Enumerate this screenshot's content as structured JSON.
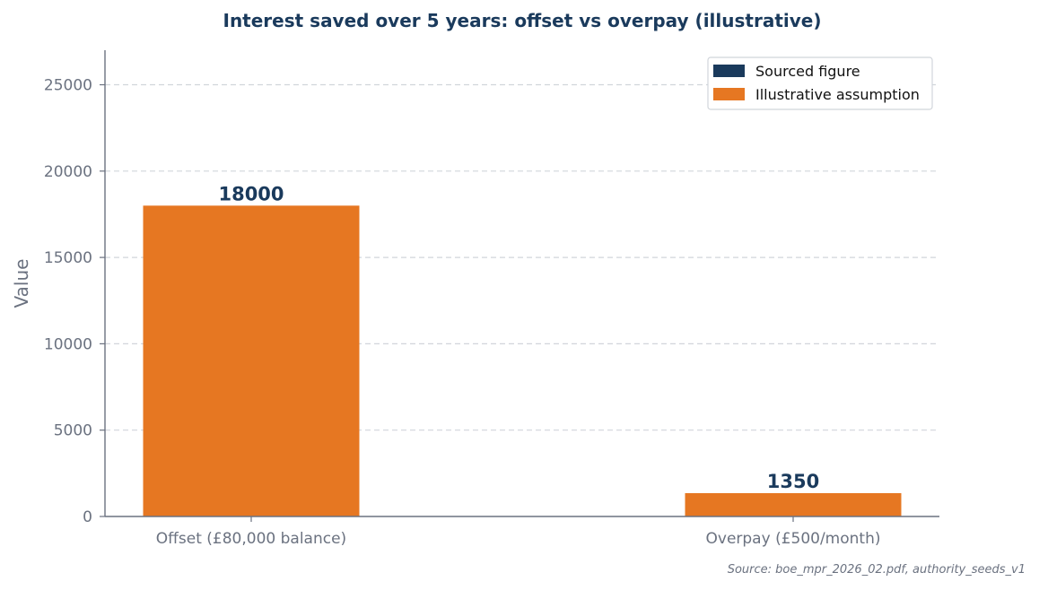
{
  "chart_data": {
    "type": "bar",
    "title": "Interest saved over 5 years: offset vs overpay (illustrative)",
    "categories": [
      "Offset (£80,000 balance)",
      "Overpay (£500/month)"
    ],
    "values": [
      18000,
      1350
    ],
    "value_labels": [
      "18000",
      "1350"
    ],
    "bar_kinds": [
      "Illustrative assumption",
      "Illustrative assumption"
    ],
    "xlabel": "",
    "ylabel": "Value",
    "ylim": [
      0,
      27000
    ],
    "yticks": [
      0,
      5000,
      10000,
      15000,
      20000,
      25000
    ],
    "grid": "horizontal dashed",
    "legend": {
      "placement": "top-right",
      "entries": [
        {
          "label": "Sourced figure",
          "color": "#1a3a5c"
        },
        {
          "label": "Illustrative assumption",
          "color": "#e67722"
        }
      ]
    },
    "source_note": "Source: boe_mpr_2026_02.pdf, authority_seeds_v1"
  },
  "colors": {
    "title": "#1a3a5c",
    "data_label": "#1a3a5c",
    "axis": "#6b7280",
    "tick_text": "#6b7280",
    "grid": "#d1d5db",
    "sourced": "#1a3a5c",
    "illustrative": "#e67722"
  }
}
